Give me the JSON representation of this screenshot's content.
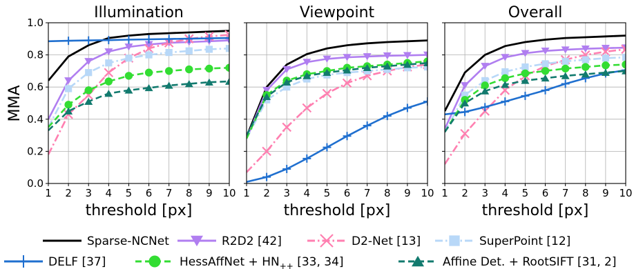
{
  "figure": {
    "ylabel": "MMA",
    "xlabel": "threshold [px]"
  },
  "chart_data": [
    {
      "type": "line",
      "title": "Illumination",
      "xlabel": "threshold [px]",
      "ylabel": "MMA",
      "xlim": [
        1,
        10
      ],
      "ylim": [
        0.0,
        1.0
      ],
      "x": [
        1,
        2,
        3,
        4,
        5,
        6,
        7,
        8,
        9,
        10
      ],
      "x_ticks": [
        "1",
        "2",
        "3",
        "4",
        "5",
        "6",
        "7",
        "8",
        "9",
        "10"
      ],
      "y_ticks": [
        "0.0",
        "0.2",
        "0.4",
        "0.6",
        "0.8",
        "1.0"
      ],
      "grid": true,
      "series": [
        {
          "name": "Sparse-NCNet",
          "values": [
            0.64,
            0.79,
            0.86,
            0.905,
            0.92,
            0.93,
            0.935,
            0.94,
            0.945,
            0.95
          ]
        },
        {
          "name": "R2D2 [42]",
          "values": [
            0.4,
            0.64,
            0.76,
            0.82,
            0.85,
            0.865,
            0.875,
            0.88,
            0.885,
            0.89
          ]
        },
        {
          "name": "D2-Net [13]",
          "values": [
            0.18,
            0.43,
            0.55,
            0.69,
            0.78,
            0.84,
            0.875,
            0.9,
            0.915,
            0.925
          ]
        },
        {
          "name": "SuperPoint [12]",
          "values": [
            0.35,
            0.59,
            0.69,
            0.75,
            0.78,
            0.8,
            0.815,
            0.825,
            0.835,
            0.84
          ]
        },
        {
          "name": "DELF [37]",
          "values": [
            0.885,
            0.888,
            0.89,
            0.892,
            0.895,
            0.897,
            0.899,
            0.901,
            0.903,
            0.905
          ]
        },
        {
          "name": "HessAffNet + HN++ [33, 34]",
          "values": [
            0.35,
            0.49,
            0.58,
            0.635,
            0.67,
            0.69,
            0.7,
            0.71,
            0.715,
            0.72
          ]
        },
        {
          "name": "Affine Det. + RootSIFT [31, 2]",
          "values": [
            0.33,
            0.45,
            0.51,
            0.56,
            0.58,
            0.595,
            0.61,
            0.62,
            0.63,
            0.635
          ]
        }
      ]
    },
    {
      "type": "line",
      "title": "Viewpoint",
      "xlabel": "threshold [px]",
      "ylabel": "",
      "xlim": [
        1,
        10
      ],
      "ylim": [
        0.0,
        1.0
      ],
      "x": [
        1,
        2,
        3,
        4,
        5,
        6,
        7,
        8,
        9,
        10
      ],
      "x_ticks": [
        "1",
        "2",
        "3",
        "4",
        "5",
        "6",
        "7",
        "8",
        "9",
        "10"
      ],
      "y_ticks": [],
      "grid": true,
      "series": [
        {
          "name": "Sparse-NCNet",
          "values": [
            0.29,
            0.6,
            0.74,
            0.805,
            0.84,
            0.86,
            0.872,
            0.88,
            0.885,
            0.89
          ]
        },
        {
          "name": "R2D2 [42]",
          "values": [
            0.28,
            0.58,
            0.71,
            0.755,
            0.775,
            0.785,
            0.79,
            0.795,
            0.797,
            0.8
          ]
        },
        {
          "name": "D2-Net [13]",
          "values": [
            0.07,
            0.2,
            0.35,
            0.47,
            0.56,
            0.625,
            0.67,
            0.7,
            0.725,
            0.74
          ]
        },
        {
          "name": "SuperPoint [12]",
          "values": [
            0.28,
            0.52,
            0.6,
            0.65,
            0.675,
            0.69,
            0.7,
            0.71,
            0.72,
            0.725
          ]
        },
        {
          "name": "DELF [37]",
          "values": [
            0.01,
            0.04,
            0.09,
            0.155,
            0.225,
            0.295,
            0.36,
            0.42,
            0.47,
            0.51
          ]
        },
        {
          "name": "HessAffNet + HN++ [33, 34]",
          "values": [
            0.28,
            0.55,
            0.64,
            0.68,
            0.7,
            0.72,
            0.73,
            0.74,
            0.75,
            0.76
          ]
        },
        {
          "name": "Affine Det. + RootSIFT [31, 2]",
          "values": [
            0.3,
            0.54,
            0.63,
            0.67,
            0.69,
            0.705,
            0.72,
            0.73,
            0.74,
            0.75
          ]
        }
      ]
    },
    {
      "type": "line",
      "title": "Overall",
      "xlabel": "threshold [px]",
      "ylabel": "",
      "xlim": [
        1,
        10
      ],
      "ylim": [
        0.0,
        1.0
      ],
      "x": [
        1,
        2,
        3,
        4,
        5,
        6,
        7,
        8,
        9,
        10
      ],
      "x_ticks": [
        "1",
        "2",
        "3",
        "4",
        "5",
        "6",
        "7",
        "8",
        "9",
        "10"
      ],
      "y_ticks": [],
      "grid": true,
      "series": [
        {
          "name": "Sparse-NCNet",
          "values": [
            0.45,
            0.69,
            0.8,
            0.855,
            0.88,
            0.895,
            0.905,
            0.91,
            0.915,
            0.92
          ]
        },
        {
          "name": "R2D2 [42]",
          "values": [
            0.34,
            0.61,
            0.73,
            0.785,
            0.81,
            0.825,
            0.832,
            0.838,
            0.842,
            0.845
          ]
        },
        {
          "name": "D2-Net [13]",
          "values": [
            0.12,
            0.31,
            0.45,
            0.58,
            0.67,
            0.73,
            0.77,
            0.8,
            0.82,
            0.835
          ]
        },
        {
          "name": "SuperPoint [12]",
          "values": [
            0.32,
            0.55,
            0.64,
            0.695,
            0.725,
            0.745,
            0.76,
            0.77,
            0.78,
            0.785
          ]
        },
        {
          "name": "DELF [37]",
          "values": [
            0.43,
            0.445,
            0.475,
            0.51,
            0.545,
            0.58,
            0.62,
            0.655,
            0.685,
            0.705
          ]
        },
        {
          "name": "HessAffNet + HN++ [33, 34]",
          "values": [
            0.32,
            0.52,
            0.61,
            0.655,
            0.685,
            0.7,
            0.715,
            0.725,
            0.735,
            0.74
          ]
        },
        {
          "name": "Affine Det. + RootSIFT [31, 2]",
          "values": [
            0.32,
            0.5,
            0.575,
            0.615,
            0.64,
            0.655,
            0.67,
            0.68,
            0.69,
            0.7
          ]
        }
      ]
    }
  ],
  "legend": {
    "placement": "bottom",
    "entries": [
      {
        "label": "Sparse-NCNet",
        "color": "#000000",
        "line": "solid",
        "marker": "none"
      },
      {
        "label": "R2D2 [42]",
        "color": "#b07ef0",
        "line": "solid",
        "marker": "triangle-down"
      },
      {
        "label": "D2-Net [13]",
        "color": "#ff7fb0",
        "line": "dashdot",
        "marker": "x"
      },
      {
        "label": "SuperPoint [12]",
        "color": "#b8d8f8",
        "line": "dashdot",
        "marker": "square"
      },
      {
        "label": "DELF [37]",
        "color": "#1f6fcf",
        "line": "solid",
        "marker": "plus"
      },
      {
        "label": "HessAffNet + HN",
        "label_sub": "++",
        "label_suffix": " [33, 34]",
        "color": "#33dd33",
        "line": "dashed",
        "marker": "circle"
      },
      {
        "label": "Affine Det. + RootSIFT [31, 2]",
        "color": "#127a6e",
        "line": "dashed",
        "marker": "triangle-up"
      }
    ]
  }
}
